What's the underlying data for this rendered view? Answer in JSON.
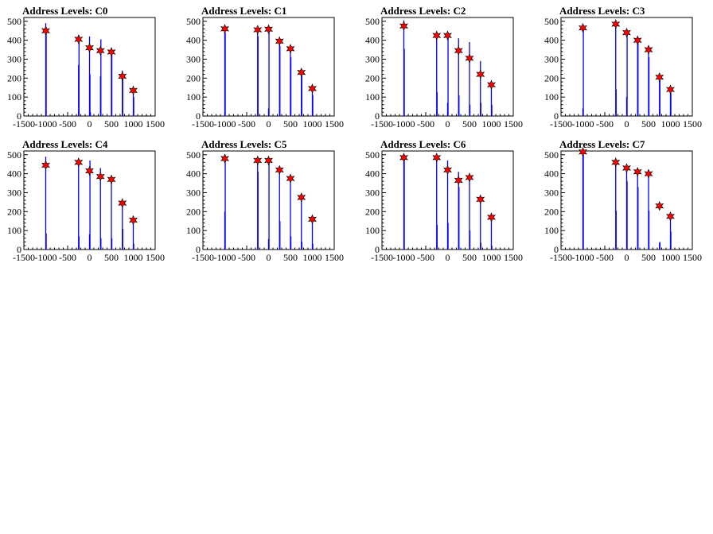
{
  "panel_colors": {
    "bar": "#0000ff",
    "marker_fill": "#ff0000",
    "marker_stroke": "#000000",
    "axis": "#000000"
  },
  "chart_data": [
    {
      "type": "bar",
      "title": "Address Levels: C0",
      "xlim": [
        -1500,
        1500
      ],
      "ylim": [
        0,
        520
      ],
      "x_ticks": [
        "-1500",
        "-1000",
        "-500",
        "0",
        "500",
        "1000",
        "1500"
      ],
      "y_ticks": [
        "0",
        "100",
        "200",
        "300",
        "400",
        "500"
      ],
      "peaks_x": [
        -1000,
        -250,
        0,
        250,
        500,
        750,
        1000
      ],
      "peaks_y": [
        450,
        405,
        360,
        345,
        338,
        210,
        135
      ],
      "bars": [
        [
          -1000,
          490
        ],
        [
          -990,
          470
        ],
        [
          -250,
          270
        ],
        [
          -240,
          425
        ],
        [
          0,
          420
        ],
        [
          10,
          220
        ],
        [
          20,
          20
        ],
        [
          250,
          210
        ],
        [
          260,
          405
        ],
        [
          500,
          360
        ],
        [
          510,
          330
        ],
        [
          750,
          240
        ],
        [
          760,
          210
        ],
        [
          1000,
          140
        ],
        [
          1010,
          100
        ]
      ]
    },
    {
      "type": "bar",
      "title": "Address Levels: C1",
      "xlim": [
        -1500,
        1500
      ],
      "ylim": [
        0,
        520
      ],
      "x_ticks": [
        "-1500",
        "-1000",
        "-500",
        "0",
        "500",
        "1000",
        "1500"
      ],
      "y_ticks": [
        "0",
        "100",
        "200",
        "300",
        "400",
        "500"
      ],
      "peaks_x": [
        -1000,
        -250,
        0,
        250,
        500,
        750,
        1000
      ],
      "peaks_y": [
        460,
        455,
        458,
        395,
        355,
        230,
        145
      ],
      "bars": [
        [
          -1000,
          475
        ],
        [
          -990,
          440
        ],
        [
          -250,
          460
        ],
        [
          -240,
          420
        ],
        [
          0,
          40
        ],
        [
          10,
          465
        ],
        [
          250,
          390
        ],
        [
          260,
          370
        ],
        [
          500,
          350
        ],
        [
          510,
          310
        ],
        [
          750,
          240
        ],
        [
          760,
          220
        ],
        [
          1000,
          150
        ],
        [
          1010,
          110
        ]
      ]
    },
    {
      "type": "bar",
      "title": "Address Levels: C2",
      "xlim": [
        -1500,
        1500
      ],
      "ylim": [
        0,
        520
      ],
      "x_ticks": [
        "-1500",
        "-1000",
        "-500",
        "0",
        "500",
        "1000",
        "1500"
      ],
      "y_ticks": [
        "0",
        "100",
        "200",
        "300",
        "400",
        "500"
      ],
      "peaks_x": [
        -1000,
        -250,
        0,
        250,
        500,
        750,
        1000
      ],
      "peaks_y": [
        475,
        425,
        425,
        345,
        305,
        220,
        165
      ],
      "bars": [
        [
          -1000,
          505
        ],
        [
          -990,
          355
        ],
        [
          -250,
          430
        ],
        [
          -240,
          125
        ],
        [
          0,
          70
        ],
        [
          10,
          430
        ],
        [
          250,
          410
        ],
        [
          260,
          110
        ],
        [
          500,
          390
        ],
        [
          510,
          60
        ],
        [
          750,
          290
        ],
        [
          760,
          70
        ],
        [
          1000,
          170
        ],
        [
          1010,
          60
        ]
      ]
    },
    {
      "type": "bar",
      "title": "Address Levels: C3",
      "xlim": [
        -1500,
        1500
      ],
      "ylim": [
        0,
        520
      ],
      "x_ticks": [
        "-1500",
        "-1000",
        "-500",
        "0",
        "500",
        "1000",
        "1500"
      ],
      "y_ticks": [
        "0",
        "100",
        "200",
        "300",
        "400",
        "500"
      ],
      "peaks_x": [
        -1000,
        -250,
        0,
        250,
        500,
        750,
        1000
      ],
      "peaks_y": [
        465,
        485,
        440,
        400,
        350,
        205,
        140
      ],
      "bars": [
        [
          -1000,
          40
        ],
        [
          -990,
          470
        ],
        [
          -250,
          490
        ],
        [
          -240,
          140
        ],
        [
          0,
          100
        ],
        [
          10,
          445
        ],
        [
          250,
          400
        ],
        [
          260,
          395
        ],
        [
          500,
          360
        ],
        [
          510,
          310
        ],
        [
          750,
          210
        ],
        [
          760,
          190
        ],
        [
          1000,
          140
        ],
        [
          1010,
          120
        ]
      ]
    },
    {
      "type": "bar",
      "title": "Address Levels: C4",
      "xlim": [
        -1500,
        1500
      ],
      "ylim": [
        0,
        520
      ],
      "x_ticks": [
        "-1500",
        "-1000",
        "-500",
        "0",
        "500",
        "1000",
        "1500"
      ],
      "y_ticks": [
        "0",
        "100",
        "200",
        "300",
        "400",
        "500"
      ],
      "peaks_x": [
        -1000,
        -250,
        0,
        250,
        500,
        750,
        1000
      ],
      "peaks_y": [
        445,
        460,
        415,
        385,
        370,
        245,
        155
      ],
      "bars": [
        [
          -1000,
          490
        ],
        [
          -990,
          85
        ],
        [
          -250,
          460
        ],
        [
          -240,
          70
        ],
        [
          0,
          80
        ],
        [
          10,
          470
        ],
        [
          250,
          430
        ],
        [
          260,
          60
        ],
        [
          500,
          360
        ],
        [
          510,
          60
        ],
        [
          750,
          240
        ],
        [
          760,
          110
        ],
        [
          1000,
          160
        ],
        [
          1010,
          30
        ]
      ]
    },
    {
      "type": "bar",
      "title": "Address Levels: C5",
      "xlim": [
        -1500,
        1500
      ],
      "ylim": [
        0,
        520
      ],
      "x_ticks": [
        "-1500",
        "-1000",
        "-500",
        "0",
        "500",
        "1000",
        "1500"
      ],
      "y_ticks": [
        "0",
        "100",
        "200",
        "300",
        "400",
        "500"
      ],
      "peaks_x": [
        -1000,
        -250,
        0,
        250,
        500,
        750,
        1000
      ],
      "peaks_y": [
        480,
        470,
        470,
        420,
        375,
        275,
        160
      ],
      "bars": [
        [
          -1000,
          200
        ],
        [
          -990,
          500
        ],
        [
          -250,
          480
        ],
        [
          -240,
          410
        ],
        [
          0,
          55
        ],
        [
          10,
          470
        ],
        [
          250,
          420
        ],
        [
          260,
          150
        ],
        [
          500,
          370
        ],
        [
          510,
          70
        ],
        [
          750,
          280
        ],
        [
          760,
          40
        ],
        [
          1000,
          165
        ],
        [
          1010,
          30
        ]
      ]
    },
    {
      "type": "bar",
      "title": "Address Levels: C6",
      "xlim": [
        -1500,
        1500
      ],
      "ylim": [
        0,
        520
      ],
      "x_ticks": [
        "-1500",
        "-1000",
        "-500",
        "0",
        "500",
        "1000",
        "1500"
      ],
      "y_ticks": [
        "0",
        "100",
        "200",
        "300",
        "400",
        "500"
      ],
      "peaks_x": [
        -1000,
        -250,
        0,
        250,
        500,
        750,
        1000
      ],
      "peaks_y": [
        485,
        485,
        420,
        365,
        380,
        265,
        170
      ],
      "bars": [
        [
          -1000,
          495
        ],
        [
          -990,
          480
        ],
        [
          -250,
          490
        ],
        [
          -240,
          130
        ],
        [
          0,
          470
        ],
        [
          10,
          140
        ],
        [
          250,
          410
        ],
        [
          260,
          330
        ],
        [
          500,
          380
        ],
        [
          510,
          100
        ],
        [
          750,
          270
        ],
        [
          760,
          35
        ],
        [
          1000,
          175
        ],
        [
          1010,
          20
        ]
      ]
    },
    {
      "type": "bar",
      "title": "Address Levels: C7",
      "xlim": [
        -1500,
        1500
      ],
      "ylim": [
        0,
        520
      ],
      "x_ticks": [
        "-1500",
        "-1000",
        "-500",
        "0",
        "500",
        "1000",
        "1500"
      ],
      "y_ticks": [
        "0",
        "100",
        "200",
        "300",
        "400",
        "500"
      ],
      "peaks_x": [
        -1000,
        -250,
        0,
        250,
        500,
        750,
        1000
      ],
      "peaks_y": [
        515,
        460,
        430,
        410,
        400,
        230,
        175
      ],
      "bars": [
        [
          -1000,
          510
        ],
        [
          -990,
          500
        ],
        [
          -250,
          460
        ],
        [
          -240,
          205
        ],
        [
          0,
          430
        ],
        [
          10,
          360
        ],
        [
          250,
          415
        ],
        [
          260,
          330
        ],
        [
          500,
          400
        ],
        [
          510,
          205
        ],
        [
          750,
          35
        ],
        [
          760,
          40
        ],
        [
          1000,
          175
        ],
        [
          1010,
          95
        ]
      ]
    }
  ]
}
